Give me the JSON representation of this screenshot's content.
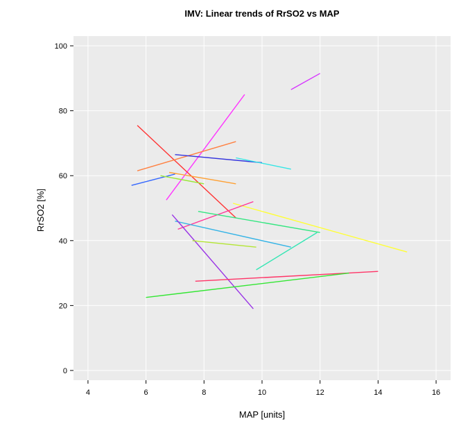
{
  "chart_data": {
    "type": "line",
    "title": "IMV: Linear trends of RrSO2 vs MAP",
    "xlabel": "MAP [units]",
    "ylabel": "RrSO2 [%]",
    "xlim": [
      3.5,
      16.5
    ],
    "ylim": [
      -3,
      103
    ],
    "x_ticks": [
      "4",
      "6",
      "8",
      "10",
      "12",
      "14",
      "16"
    ],
    "y_ticks": [
      "0",
      "20",
      "40",
      "60",
      "80",
      "100"
    ],
    "grid": true,
    "background": "#ebebeb",
    "series": [
      {
        "x": [
          11.0,
          12.0
        ],
        "y": [
          86.5,
          91.5
        ],
        "color": "#d633ff"
      },
      {
        "x": [
          6.7,
          9.4
        ],
        "y": [
          52.5,
          85.0
        ],
        "color": "#ff33ff"
      },
      {
        "x": [
          5.7,
          9.1
        ],
        "y": [
          75.5,
          47.0
        ],
        "color": "#ff3333"
      },
      {
        "x": [
          5.7,
          9.1
        ],
        "y": [
          61.5,
          70.5
        ],
        "color": "#ff8040"
      },
      {
        "x": [
          7.0,
          10.0
        ],
        "y": [
          66.5,
          64.0
        ],
        "color": "#3333dd"
      },
      {
        "x": [
          9.1,
          11.0
        ],
        "y": [
          65.5,
          62.0
        ],
        "color": "#33e6e6"
      },
      {
        "x": [
          5.5,
          7.0
        ],
        "y": [
          57.0,
          60.5
        ],
        "color": "#3366ff"
      },
      {
        "x": [
          6.8,
          9.1
        ],
        "y": [
          61.0,
          57.5
        ],
        "color": "#ffa033"
      },
      {
        "x": [
          6.5,
          8.0
        ],
        "y": [
          60.0,
          57.5
        ],
        "color": "#99e633"
      },
      {
        "x": [
          9.0,
          15.0
        ],
        "y": [
          51.5,
          36.5
        ],
        "color": "#ffff33"
      },
      {
        "x": [
          7.1,
          9.7
        ],
        "y": [
          43.5,
          52.0
        ],
        "color": "#ff3399"
      },
      {
        "x": [
          7.8,
          12.0
        ],
        "y": [
          49.0,
          42.5
        ],
        "color": "#33e680"
      },
      {
        "x": [
          7.0,
          11.0
        ],
        "y": [
          46.0,
          38.0
        ],
        "color": "#33b3e6"
      },
      {
        "x": [
          6.9,
          9.7
        ],
        "y": [
          48.0,
          19.0
        ],
        "color": "#9933e6"
      },
      {
        "x": [
          7.6,
          9.8
        ],
        "y": [
          40.0,
          38.0
        ],
        "color": "#b3e633"
      },
      {
        "x": [
          9.8,
          11.9
        ],
        "y": [
          31.0,
          42.5
        ],
        "color": "#33e6b3"
      },
      {
        "x": [
          7.7,
          14.0
        ],
        "y": [
          27.5,
          30.5
        ],
        "color": "#ff3366"
      },
      {
        "x": [
          6.0,
          13.0
        ],
        "y": [
          22.5,
          30.0
        ],
        "color": "#33e633"
      }
    ]
  }
}
